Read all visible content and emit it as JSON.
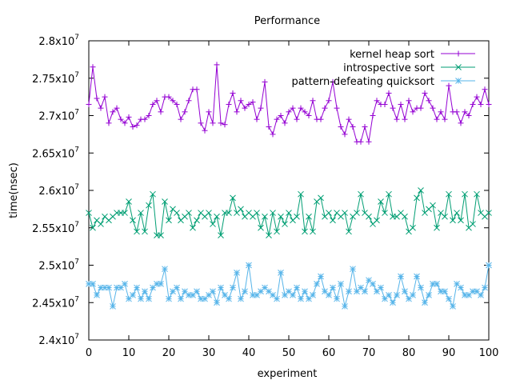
{
  "chart_data": {
    "type": "line",
    "title": "Performance",
    "xlabel": "experiment",
    "ylabel": "time(nsec)",
    "xlim": [
      0,
      100
    ],
    "ylim": [
      24000000,
      28000000
    ],
    "x_ticks": [
      0,
      10,
      20,
      30,
      40,
      50,
      60,
      70,
      80,
      90,
      100
    ],
    "y_ticks": [
      {
        "value": 24000000,
        "mantissa": "2.4x10",
        "exp": "7"
      },
      {
        "value": 24500000,
        "mantissa": "2.45x10",
        "exp": "7"
      },
      {
        "value": 25000000,
        "mantissa": "2.5x10",
        "exp": "7"
      },
      {
        "value": 25500000,
        "mantissa": "2.55x10",
        "exp": "7"
      },
      {
        "value": 26000000,
        "mantissa": "2.6x10",
        "exp": "7"
      },
      {
        "value": 26500000,
        "mantissa": "2.65x10",
        "exp": "7"
      },
      {
        "value": 27000000,
        "mantissa": "2.7x10",
        "exp": "7"
      },
      {
        "value": 27500000,
        "mantissa": "2.75x10",
        "exp": "7"
      },
      {
        "value": 28000000,
        "mantissa": "2.8x10",
        "exp": "7"
      }
    ],
    "grid": false,
    "legend_position": "top-right",
    "series": [
      {
        "name": "kernel heap sort",
        "color": "#9400d3",
        "marker": "plus",
        "values": [
          27150000,
          27650000,
          27230000,
          27100000,
          27250000,
          26900000,
          27050000,
          27100000,
          26950000,
          26900000,
          26980000,
          26850000,
          26870000,
          26950000,
          26950000,
          27000000,
          27150000,
          27200000,
          27050000,
          27250000,
          27250000,
          27200000,
          27150000,
          26950000,
          27050000,
          27200000,
          27350000,
          27350000,
          26900000,
          26800000,
          27050000,
          26900000,
          27680000,
          26900000,
          26880000,
          27150000,
          27300000,
          27050000,
          27200000,
          27100000,
          27150000,
          27180000,
          26950000,
          27100000,
          27450000,
          26850000,
          26750000,
          26950000,
          27000000,
          26900000,
          27050000,
          27100000,
          26950000,
          27100000,
          27050000,
          27000000,
          27200000,
          26950000,
          26950000,
          27100000,
          27200000,
          27450000,
          27100000,
          26850000,
          26750000,
          26950000,
          26850000,
          26650000,
          26650000,
          26850000,
          26650000,
          27000000,
          27200000,
          27150000,
          27150000,
          27300000,
          27100000,
          26950000,
          27150000,
          26950000,
          27200000,
          27050000,
          27100000,
          27100000,
          27300000,
          27200000,
          27100000,
          26950000,
          27050000,
          26950000,
          27400000,
          27050000,
          27050000,
          26900000,
          27050000,
          27000000,
          27150000,
          27250000,
          27150000,
          27350000,
          27150000
        ]
      },
      {
        "name": "introspective sort",
        "color": "#009e73",
        "marker": "cross",
        "values": [
          25700000,
          25500000,
          25600000,
          25550000,
          25650000,
          25600000,
          25650000,
          25700000,
          25700000,
          25700000,
          25850000,
          25600000,
          25450000,
          25700000,
          25450000,
          25800000,
          25950000,
          25400000,
          25400000,
          25850000,
          25600000,
          25750000,
          25700000,
          25600000,
          25650000,
          25700000,
          25500000,
          25600000,
          25700000,
          25650000,
          25700000,
          25550000,
          25650000,
          25400000,
          25700000,
          25700000,
          25900000,
          25700000,
          25750000,
          25650000,
          25700000,
          25650000,
          25700000,
          25500000,
          25650000,
          25400000,
          25700000,
          25450000,
          25650000,
          25550000,
          25700000,
          25600000,
          25650000,
          25950000,
          25450000,
          25650000,
          25450000,
          25850000,
          25900000,
          25650000,
          25700000,
          25600000,
          25700000,
          25650000,
          25700000,
          25450000,
          25650000,
          25700000,
          25950000,
          25700000,
          25650000,
          25550000,
          25600000,
          25850000,
          25700000,
          25950000,
          25650000,
          25650000,
          25700000,
          25650000,
          25450000,
          25500000,
          25900000,
          26000000,
          25700000,
          25750000,
          25800000,
          25500000,
          25700000,
          25650000,
          25950000,
          25600000,
          25700000,
          25600000,
          25950000,
          25500000,
          25550000,
          25950000,
          25700000,
          25650000,
          25700000
        ]
      },
      {
        "name": "pattern-defeating quicksort",
        "color": "#56b4e9",
        "marker": "star",
        "values": [
          24750000,
          24750000,
          24600000,
          24700000,
          24700000,
          24700000,
          24450000,
          24700000,
          24700000,
          24750000,
          24550000,
          24600000,
          24700000,
          24550000,
          24650000,
          24550000,
          24700000,
          24750000,
          24750000,
          24950000,
          24550000,
          24650000,
          24700000,
          24550000,
          24650000,
          24600000,
          24600000,
          24650000,
          24550000,
          24550000,
          24600000,
          24650000,
          24500000,
          24700000,
          24600000,
          24550000,
          24700000,
          24900000,
          24550000,
          24650000,
          25000000,
          24600000,
          24600000,
          24650000,
          24700000,
          24650000,
          24600000,
          24550000,
          24900000,
          24600000,
          24650000,
          24600000,
          24700000,
          24550000,
          24650000,
          24550000,
          24600000,
          24750000,
          24850000,
          24650000,
          24600000,
          24700000,
          24550000,
          24750000,
          24450000,
          24650000,
          24950000,
          24650000,
          24700000,
          24650000,
          24800000,
          24750000,
          24650000,
          24700000,
          24550000,
          24600000,
          24500000,
          24600000,
          24850000,
          24650000,
          24550000,
          24600000,
          24850000,
          24700000,
          24500000,
          24600000,
          24750000,
          24750000,
          24650000,
          24650000,
          24550000,
          24450000,
          24750000,
          24700000,
          24600000,
          24600000,
          24650000,
          24650000,
          24600000,
          24700000,
          25000000
        ]
      }
    ]
  }
}
